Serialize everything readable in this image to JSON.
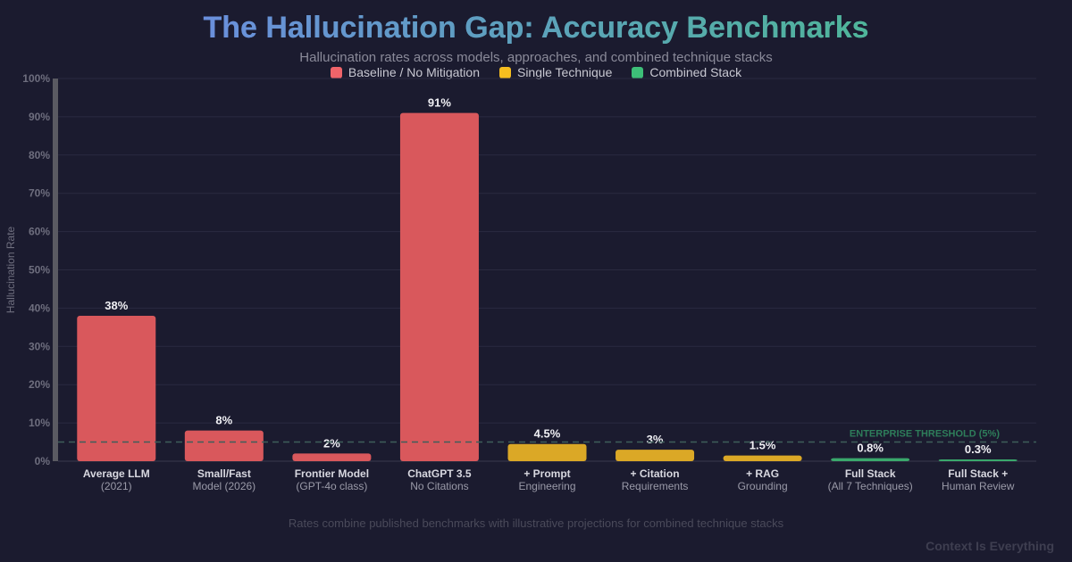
{
  "chart_data": {
    "type": "bar",
    "title": "The Hallucination Gap: Accuracy Benchmarks",
    "subtitle": "Hallucination rates across models, approaches, and combined technique stacks",
    "ylabel": "Hallucination Rate",
    "xlabel": "",
    "ylim": [
      0,
      100
    ],
    "yticks": [
      "0%",
      "10%",
      "20%",
      "30%",
      "40%",
      "50%",
      "60%",
      "70%",
      "80%",
      "90%",
      "100%"
    ],
    "grid": true,
    "legend_placement": "top-center",
    "legend": [
      {
        "name": "Baseline / No Mitigation",
        "color": "#f0646a"
      },
      {
        "name": "Single Technique",
        "color": "#f5bd1f"
      },
      {
        "name": "Combined Stack",
        "color": "#3dbf78"
      }
    ],
    "categories": [
      {
        "line1": "Average LLM",
        "line2": "(2021)"
      },
      {
        "line1": "Small/Fast",
        "line2": "Model (2026)"
      },
      {
        "line1": "Frontier Model",
        "line2": "(GPT-4o class)"
      },
      {
        "line1": "ChatGPT 3.5",
        "line2": "No Citations"
      },
      {
        "line1": "+ Prompt",
        "line2": "Engineering"
      },
      {
        "line1": "+ Citation",
        "line2": "Requirements"
      },
      {
        "line1": "+ RAG",
        "line2": "Grounding"
      },
      {
        "line1": "Full Stack",
        "line2": "(All 7 Techniques)"
      },
      {
        "line1": "Full Stack +",
        "line2": "Human Review"
      }
    ],
    "values": [
      38,
      8,
      2,
      91,
      4.5,
      3,
      1.5,
      0.8,
      0.3
    ],
    "data_labels": [
      "38%",
      "8%",
      "2%",
      "91%",
      "4.5%",
      "3%",
      "1.5%",
      "0.8%",
      "0.3%"
    ],
    "groups": [
      0,
      0,
      0,
      0,
      1,
      1,
      1,
      2,
      2
    ],
    "bar_colors": [
      "#d9585c",
      "#dba826",
      "#3aa86c"
    ],
    "threshold": {
      "value": 5,
      "label": "ENTERPRISE THRESHOLD (5%)",
      "color": "#2e7d5a"
    },
    "footnote": "Rates combine published benchmarks with illustrative projections for combined technique stacks"
  },
  "brand": "Context Is Everything"
}
